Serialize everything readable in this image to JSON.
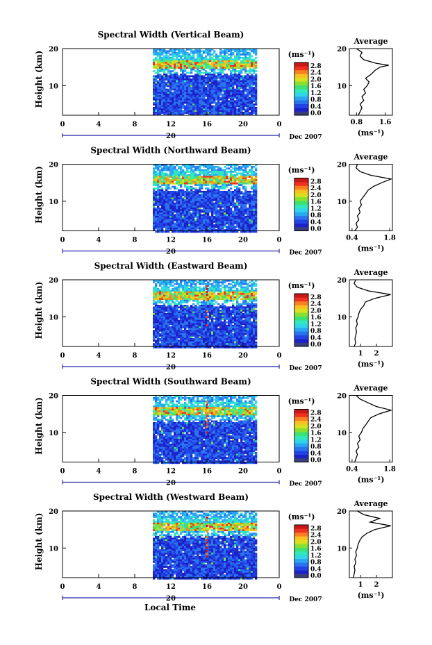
{
  "colors": {
    "scale": [
      "#3a3d7a",
      "#1c22c8",
      "#2244e6",
      "#2a74f0",
      "#2aa7f2",
      "#2ed6e8",
      "#30e8b8",
      "#40e070",
      "#8ae030",
      "#d8e020",
      "#f8c020",
      "#f88020",
      "#f03020",
      "#c81818"
    ]
  },
  "chart_data": {
    "type": "heatmap",
    "panels": [
      {
        "title": "Spectral Width (Vertical Beam)",
        "ylabel": "Height (km)",
        "yticks": [
          "20",
          "10"
        ],
        "ylim": [
          2,
          20
        ],
        "xticks": [
          "0",
          "4",
          "8",
          "12",
          "16",
          "20",
          "0"
        ],
        "xlim": [
          0,
          24
        ],
        "data_span_hours": [
          10,
          21.5
        ],
        "date_label": "20",
        "month_label": "Dec 2007",
        "colorbar": {
          "unit": "(ms⁻¹)",
          "ticks": [
            "2.8",
            "2.4",
            "2.0",
            "1.6",
            "1.2",
            "0.8",
            "0.4",
            "0.0"
          ]
        },
        "profile": {
          "title": "Average",
          "xlabel": "(ms⁻¹)",
          "xticks": [
            "0.8",
            "1.6"
          ],
          "xlim": [
            0.6,
            1.8
          ],
          "heights": [
            2,
            3,
            4,
            5,
            6,
            7,
            8,
            9,
            10,
            11,
            12,
            13,
            14,
            15,
            15.5,
            16,
            17,
            18,
            19,
            20
          ],
          "values": [
            0.85,
            0.9,
            0.95,
            0.9,
            1.0,
            0.95,
            1.05,
            1.0,
            1.1,
            1.15,
            1.05,
            1.2,
            1.3,
            1.45,
            1.7,
            1.35,
            1.0,
            0.9,
            0.95,
            0.8
          ]
        }
      },
      {
        "title": "Spectral Width (Northward Beam)",
        "ylabel": "Height (km)",
        "yticks": [
          "20",
          "10"
        ],
        "ylim": [
          2,
          20
        ],
        "xticks": [
          "0",
          "4",
          "8",
          "12",
          "16",
          "20",
          "0"
        ],
        "xlim": [
          0,
          24
        ],
        "data_span_hours": [
          10,
          21.5
        ],
        "date_label": "20",
        "month_label": "Dec 2007",
        "colorbar": {
          "unit": "(ms⁻¹)",
          "ticks": [
            "2.8",
            "2.4",
            "2.0",
            "1.6",
            "1.2",
            "0.8",
            "0.4",
            "0.0"
          ]
        },
        "profile": {
          "title": "Average",
          "xlabel": "(ms⁻¹)",
          "xticks": [
            "0.4",
            "1.8"
          ],
          "xlim": [
            0.3,
            1.9
          ],
          "heights": [
            2,
            3,
            4,
            5,
            6,
            7,
            8,
            9,
            10,
            11,
            12,
            13,
            14,
            15,
            16,
            17,
            18,
            19,
            20
          ],
          "values": [
            0.5,
            0.6,
            0.55,
            0.65,
            0.6,
            0.7,
            0.65,
            0.75,
            0.7,
            0.8,
            0.9,
            1.0,
            1.2,
            1.5,
            1.85,
            1.1,
            0.7,
            0.55,
            0.6
          ]
        }
      },
      {
        "title": "Spectral Width (Eastward Beam)",
        "ylabel": "Height (km)",
        "yticks": [
          "20",
          "10"
        ],
        "ylim": [
          2,
          20
        ],
        "xticks": [
          "0",
          "4",
          "8",
          "12",
          "16",
          "20",
          "0"
        ],
        "xlim": [
          0,
          24
        ],
        "data_span_hours": [
          10,
          21.5
        ],
        "date_label": "20",
        "month_label": "Dec 2007",
        "colorbar": {
          "unit": "(ms⁻¹)",
          "ticks": [
            "2.8",
            "2.4",
            "2.0",
            "1.6",
            "1.2",
            "0.8",
            "0.4",
            "0.0"
          ]
        },
        "profile": {
          "title": "Average",
          "xlabel": "(ms⁻¹)",
          "xticks": [
            "1",
            "2"
          ],
          "xlim": [
            0.3,
            3.0
          ],
          "heights": [
            2,
            3,
            4,
            5,
            6,
            7,
            8,
            9,
            10,
            11,
            12,
            13,
            14,
            15,
            16,
            17,
            18,
            19,
            20
          ],
          "values": [
            0.6,
            0.7,
            0.65,
            0.7,
            0.75,
            0.7,
            0.8,
            0.75,
            0.85,
            0.9,
            1.0,
            1.2,
            1.3,
            1.9,
            2.9,
            1.5,
            0.8,
            0.6,
            0.7
          ]
        }
      },
      {
        "title": "Spectral Width (Southward Beam)",
        "ylabel": "Height (km)",
        "yticks": [
          "20",
          "10"
        ],
        "ylim": [
          2,
          20
        ],
        "xticks": [
          "0",
          "4",
          "8",
          "12",
          "16",
          "20",
          "0"
        ],
        "xlim": [
          0,
          24
        ],
        "data_span_hours": [
          10,
          21.5
        ],
        "date_label": "20",
        "month_label": "Dec 2007",
        "colorbar": {
          "unit": "(ms⁻¹)",
          "ticks": [
            "2.8",
            "2.4",
            "2.0",
            "1.6",
            "1.2",
            "0.8",
            "0.4",
            "0.0"
          ]
        },
        "profile": {
          "title": "Average",
          "xlabel": "(ms⁻¹)",
          "xticks": [
            "0.4",
            "1.8"
          ],
          "xlim": [
            0.3,
            1.9
          ],
          "heights": [
            2,
            3,
            4,
            5,
            6,
            7,
            8,
            9,
            10,
            11,
            12,
            13,
            14,
            15,
            16,
            17,
            18,
            19,
            20
          ],
          "values": [
            0.5,
            0.55,
            0.6,
            0.55,
            0.65,
            0.6,
            0.7,
            0.65,
            0.75,
            0.8,
            0.9,
            1.0,
            1.1,
            1.4,
            1.85,
            1.3,
            1.0,
            0.7,
            0.55
          ]
        }
      },
      {
        "title": "Spectral Width (Westward Beam)",
        "ylabel": "Height (km)",
        "yticks": [
          "20",
          "10"
        ],
        "ylim": [
          2,
          20
        ],
        "xticks": [
          "0",
          "4",
          "8",
          "12",
          "16",
          "20",
          "0"
        ],
        "xlim": [
          0,
          24
        ],
        "data_span_hours": [
          10,
          21.5
        ],
        "date_label": "20",
        "month_label": "Dec 2007",
        "colorbar": {
          "unit": "(ms⁻¹)",
          "ticks": [
            "2.8",
            "2.4",
            "2.0",
            "1.6",
            "1.2",
            "0.8",
            "0.4",
            "0.0"
          ]
        },
        "profile": {
          "title": "Average",
          "xlabel": "(ms⁻¹)",
          "xticks": [
            "1",
            "2"
          ],
          "xlim": [
            0.3,
            3.0
          ],
          "heights": [
            2,
            3,
            4,
            5,
            6,
            7,
            8,
            9,
            10,
            11,
            12,
            13,
            14,
            15,
            16,
            17,
            18,
            19,
            20
          ],
          "values": [
            0.55,
            0.6,
            0.65,
            0.6,
            0.7,
            0.65,
            0.75,
            0.7,
            0.8,
            0.85,
            0.95,
            1.1,
            1.4,
            1.9,
            2.9,
            1.6,
            2.2,
            1.2,
            0.8
          ]
        }
      }
    ],
    "xlabel": "Local Time"
  }
}
